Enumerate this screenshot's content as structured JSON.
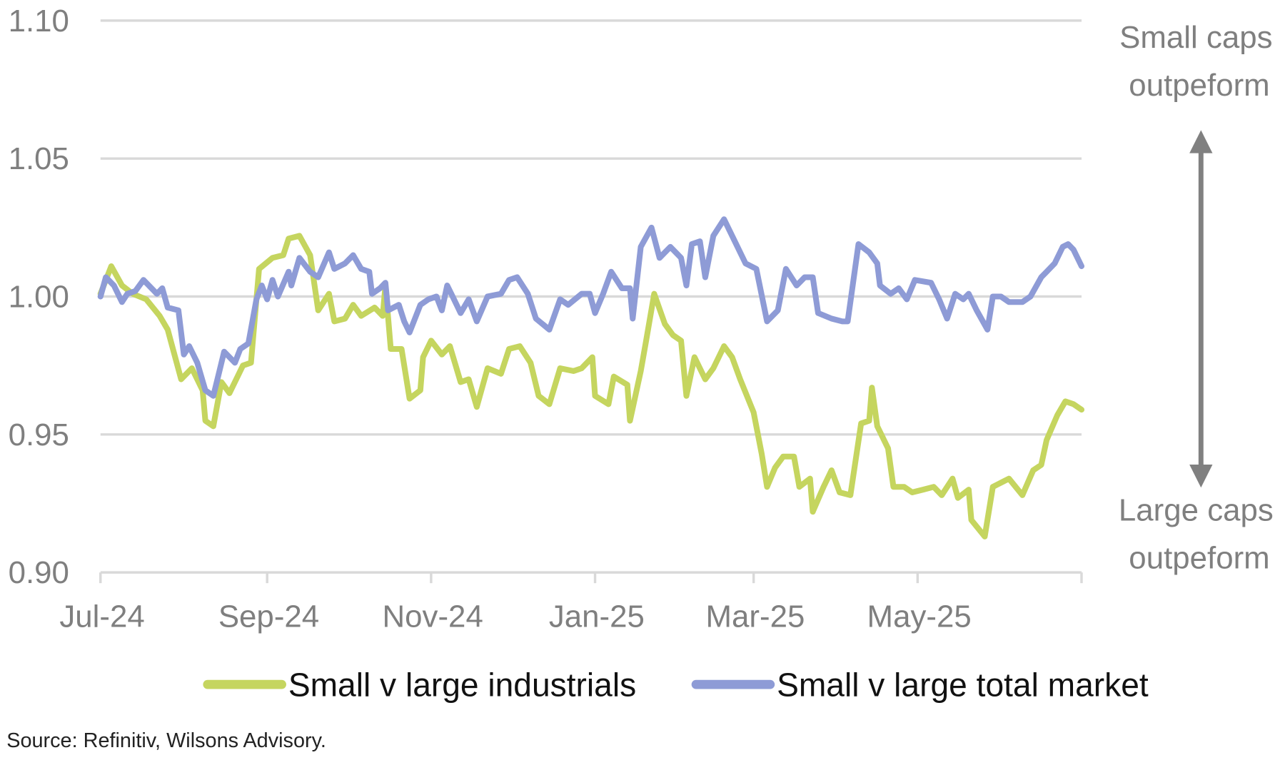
{
  "chart_data": {
    "type": "line",
    "title": "",
    "xlabel": "",
    "ylabel": "",
    "x_unit": "days since 1-Jul-2024",
    "xlim": [
      0,
      365
    ],
    "ylim": [
      0.9,
      1.1
    ],
    "grid": true,
    "y_ticks": [
      {
        "value": 1.1,
        "label": "1.10"
      },
      {
        "value": 1.05,
        "label": "1.05"
      },
      {
        "value": 1.0,
        "label": "1.00"
      },
      {
        "value": 0.95,
        "label": "0.95"
      },
      {
        "value": 0.9,
        "label": "0.90"
      }
    ],
    "x_ticks": [
      {
        "value": 0,
        "label": "Jul-24"
      },
      {
        "value": 62,
        "label": "Sep-24"
      },
      {
        "value": 123,
        "label": "Nov-24"
      },
      {
        "value": 184,
        "label": "Jan-25"
      },
      {
        "value": 243,
        "label": "Mar-25"
      },
      {
        "value": 304,
        "label": "May-25"
      },
      {
        "value": 365,
        "label": ""
      }
    ],
    "annotations": {
      "top": [
        "Small caps",
        "outpeform"
      ],
      "bottom": [
        "Large caps",
        "outpeform"
      ]
    },
    "legend_position": "bottom",
    "series": [
      {
        "name": "Small v large industrials",
        "color": "#c5d55f",
        "x": [
          0,
          4,
          8,
          12,
          17,
          22,
          25,
          30,
          34,
          38,
          39,
          42,
          45,
          48,
          53,
          56,
          59,
          64,
          68,
          70,
          74,
          78,
          81,
          85,
          87,
          91,
          94,
          97,
          102,
          105,
          106,
          108,
          112,
          115,
          119,
          120,
          123,
          127,
          130,
          134,
          137,
          140,
          144,
          149,
          152,
          156,
          160,
          163,
          167,
          171,
          176,
          179,
          183,
          184,
          189,
          191,
          196,
          197,
          201,
          203,
          206,
          210,
          213,
          216,
          218,
          221,
          225,
          228,
          232,
          235,
          238,
          243,
          246,
          248,
          251,
          254,
          258,
          260,
          264,
          265,
          269,
          272,
          275,
          279,
          283,
          286,
          287,
          289,
          293,
          295,
          299,
          302,
          306,
          310,
          313,
          317,
          319,
          323,
          324,
          329,
          332,
          336,
          338,
          343,
          347,
          350,
          352,
          356,
          359,
          362,
          365
        ],
        "values": [
          1.001,
          1.011,
          1.004,
          1.001,
          0.999,
          0.993,
          0.988,
          0.97,
          0.974,
          0.966,
          0.955,
          0.953,
          0.969,
          0.965,
          0.975,
          0.976,
          1.01,
          1.014,
          1.015,
          1.021,
          1.022,
          1.015,
          0.995,
          1.001,
          0.991,
          0.992,
          0.997,
          0.993,
          0.996,
          0.993,
          1.004,
          0.981,
          0.981,
          0.963,
          0.966,
          0.978,
          0.984,
          0.979,
          0.982,
          0.969,
          0.97,
          0.96,
          0.974,
          0.972,
          0.981,
          0.982,
          0.976,
          0.964,
          0.961,
          0.974,
          0.973,
          0.974,
          0.978,
          0.964,
          0.961,
          0.971,
          0.968,
          0.955,
          0.973,
          0.984,
          1.001,
          0.99,
          0.986,
          0.984,
          0.964,
          0.978,
          0.97,
          0.974,
          0.982,
          0.978,
          0.97,
          0.958,
          0.943,
          0.931,
          0.938,
          0.942,
          0.942,
          0.931,
          0.934,
          0.922,
          0.931,
          0.937,
          0.929,
          0.928,
          0.954,
          0.955,
          0.967,
          0.953,
          0.945,
          0.931,
          0.931,
          0.929,
          0.93,
          0.931,
          0.928,
          0.934,
          0.927,
          0.93,
          0.919,
          0.913,
          0.931,
          0.933,
          0.934,
          0.928,
          0.937,
          0.939,
          0.948,
          0.957,
          0.962,
          0.961,
          0.959
        ]
      },
      {
        "name": "Small v large total market",
        "color": "#8e9bd6",
        "x": [
          0,
          2,
          5,
          8,
          10,
          13,
          16,
          21,
          23,
          25,
          29,
          31,
          33,
          36,
          39,
          42,
          44,
          46,
          50,
          52,
          55,
          58,
          60,
          62,
          64,
          66,
          70,
          71,
          74,
          78,
          81,
          85,
          87,
          91,
          94,
          97,
          100,
          101,
          104,
          106,
          107,
          111,
          113,
          115,
          119,
          122,
          125,
          127,
          129,
          131,
          134,
          137,
          140,
          144,
          149,
          152,
          155,
          159,
          162,
          167,
          171,
          174,
          179,
          182,
          184,
          187,
          190,
          194,
          197,
          198,
          201,
          205,
          208,
          212,
          216,
          218,
          220,
          223,
          225,
          228,
          232,
          235,
          240,
          244,
          248,
          252,
          255,
          259,
          262,
          265,
          267,
          272,
          276,
          278,
          282,
          286,
          289,
          290,
          294,
          297,
          300,
          303,
          309,
          312,
          315,
          318,
          321,
          323,
          326,
          330,
          332,
          335,
          338,
          343,
          346,
          350,
          352,
          355,
          358,
          360,
          362,
          365
        ],
        "values": [
          1.0,
          1.007,
          1.004,
          0.998,
          1.001,
          1.002,
          1.006,
          1.001,
          1.003,
          0.996,
          0.995,
          0.979,
          0.982,
          0.976,
          0.966,
          0.964,
          0.972,
          0.98,
          0.976,
          0.981,
          0.983,
          0.999,
          1.004,
          0.999,
          1.006,
          1.0,
          1.009,
          1.004,
          1.014,
          1.009,
          1.007,
          1.016,
          1.01,
          1.012,
          1.015,
          1.01,
          1.009,
          1.001,
          1.003,
          1.005,
          0.995,
          0.997,
          0.991,
          0.987,
          0.997,
          0.999,
          1.0,
          0.995,
          1.004,
          1.0,
          0.994,
          0.999,
          0.991,
          1.0,
          1.001,
          1.006,
          1.007,
          1.001,
          0.992,
          0.988,
          0.999,
          0.997,
          1.001,
          1.001,
          0.994,
          1.001,
          1.009,
          1.003,
          1.003,
          0.992,
          1.018,
          1.025,
          1.014,
          1.018,
          1.014,
          1.004,
          1.019,
          1.02,
          1.007,
          1.022,
          1.028,
          1.022,
          1.012,
          1.01,
          0.991,
          0.995,
          1.01,
          1.004,
          1.007,
          1.007,
          0.994,
          0.992,
          0.991,
          0.991,
          1.019,
          1.016,
          1.012,
          1.004,
          1.001,
          1.003,
          0.999,
          1.006,
          1.005,
          0.999,
          0.992,
          1.001,
          0.999,
          1.001,
          0.995,
          0.988,
          1.0,
          1.0,
          0.998,
          0.998,
          1.0,
          1.007,
          1.009,
          1.012,
          1.018,
          1.019,
          1.017,
          1.011
        ]
      }
    ]
  },
  "source": "Source: Refinitiv, Wilsons Advisory."
}
